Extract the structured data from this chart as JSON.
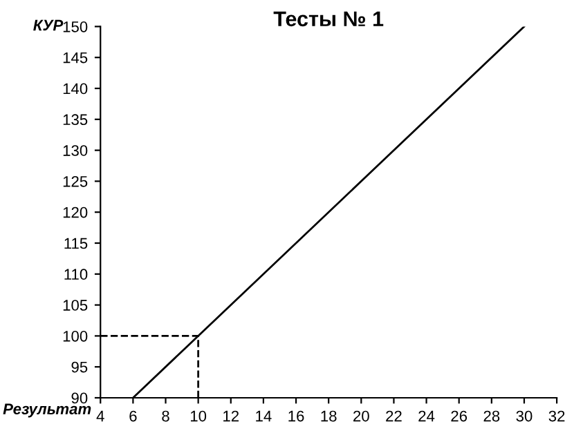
{
  "chart_data": {
    "type": "line",
    "title": "Тесты № 1",
    "xlabel": "Результат",
    "ylabel": "КУР",
    "series": [
      {
        "color": "#000000",
        "x": [
          6,
          30
        ],
        "values": [
          90,
          150
        ],
        "line_style": "solid"
      },
      {
        "color": "#000000",
        "x": [
          4,
          10,
          10
        ],
        "values": [
          100,
          100,
          90
        ],
        "line_style": "dashed"
      }
    ],
    "xlim": [
      4,
      32
    ],
    "xticks": [
      4,
      6,
      8,
      10,
      12,
      14,
      16,
      18,
      20,
      22,
      24,
      26,
      28,
      30,
      32
    ],
    "ylim": [
      90,
      150
    ],
    "yticks": [
      90,
      95,
      100,
      105,
      110,
      115,
      120,
      125,
      130,
      135,
      140,
      145,
      150
    ],
    "grid": false,
    "legend": false,
    "marker": "none"
  }
}
